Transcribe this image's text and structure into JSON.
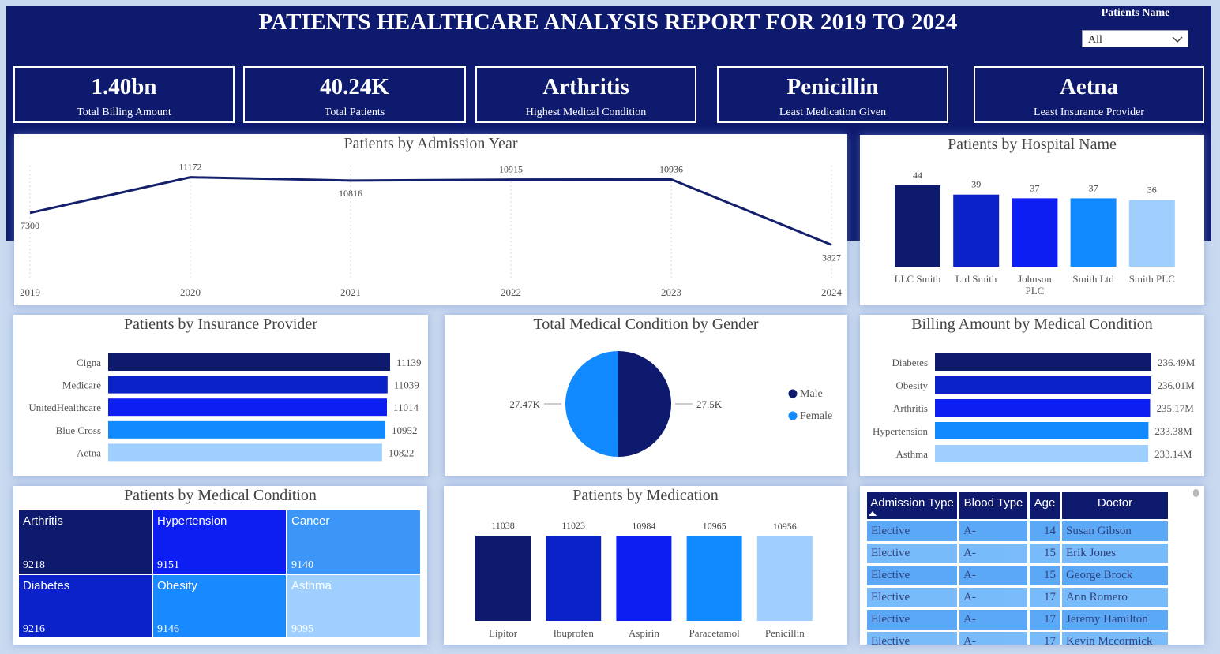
{
  "title": "PATIENTS HEALTHCARE ANALYSIS REPORT FOR 2019 TO 2024",
  "filter": {
    "label": "Patients Name",
    "value": "All"
  },
  "kpis": [
    {
      "value": "1.40bn",
      "label": "Total Billing Amount"
    },
    {
      "value": "40.24K",
      "label": "Total Patients"
    },
    {
      "value": "Arthritis",
      "label": "Highest Medical Condition"
    },
    {
      "value": "Penicillin",
      "label": "Least Medication Given"
    },
    {
      "value": "Aetna",
      "label": "Least Insurance Provider"
    }
  ],
  "colors": {
    "navy": "#0e1a6e",
    "blue": "#0a22c7",
    "bright_blue": "#0c1ef2",
    "mid_blue": "#1189ff",
    "light_blue": "#9ecfff",
    "line": "#14206b"
  },
  "chart_data": [
    {
      "id": "admission",
      "type": "line",
      "title": "Patients by Admission Year",
      "x": [
        "2019",
        "2020",
        "2021",
        "2022",
        "2023",
        "2024"
      ],
      "values": [
        7300,
        11172,
        10816,
        10915,
        10936,
        3827
      ],
      "value_labels": [
        "7300",
        "11172",
        "10816",
        "10915",
        "10936",
        "3827"
      ],
      "ylim": [
        3000,
        12000
      ]
    },
    {
      "id": "hospital",
      "type": "bar",
      "title": "Patients by Hospital Name",
      "categories": [
        "LLC Smith",
        "Ltd Smith",
        "Johnson PLC",
        "Smith Ltd",
        "Smith PLC"
      ],
      "values": [
        44,
        39,
        37,
        37,
        36
      ],
      "ylim": [
        0,
        44
      ]
    },
    {
      "id": "insurance",
      "type": "bar",
      "orientation": "horizontal",
      "title": "Patients by Insurance Provider",
      "categories": [
        "Cigna",
        "Medicare",
        "UnitedHealthcare",
        "Blue Cross",
        "Aetna"
      ],
      "values": [
        11139,
        11039,
        11014,
        10952,
        10822
      ],
      "value_labels": [
        "11139",
        "11039",
        "11014",
        "10952",
        "10822"
      ],
      "xlim": [
        0,
        11139
      ]
    },
    {
      "id": "gender",
      "type": "pie",
      "title": "Total Medical Condition by Gender",
      "categories": [
        "Male",
        "Female"
      ],
      "values": [
        27500,
        27470
      ],
      "value_labels": [
        "27.5K",
        "27.47K"
      ],
      "legend": "right"
    },
    {
      "id": "billing",
      "type": "bar",
      "orientation": "horizontal",
      "title": "Billing Amount by Medical Condition",
      "categories": [
        "Diabetes",
        "Obesity",
        "Arthritis",
        "Hypertension",
        "Asthma"
      ],
      "values": [
        236.49,
        236.01,
        235.17,
        233.38,
        233.14
      ],
      "value_labels": [
        "236.49M",
        "236.01M",
        "235.17M",
        "233.38M",
        "233.14M"
      ],
      "xlim": [
        0,
        236.49
      ]
    },
    {
      "id": "condition",
      "type": "treemap",
      "title": "Patients by Medical Condition",
      "categories": [
        "Arthritis",
        "Hypertension",
        "Cancer",
        "Diabetes",
        "Obesity",
        "Asthma"
      ],
      "values": [
        9218,
        9151,
        9140,
        9216,
        9146,
        9095
      ]
    },
    {
      "id": "medication",
      "type": "bar",
      "title": "Patients by Medication",
      "categories": [
        "Lipitor",
        "Ibuprofen",
        "Aspirin",
        "Paracetamol",
        "Penicillin"
      ],
      "values": [
        11038,
        11023,
        10984,
        10965,
        10956
      ],
      "ylim": [
        0,
        11038
      ]
    }
  ],
  "table": {
    "headers": [
      "Admission Type",
      "Blood Type",
      "Age",
      "Doctor"
    ],
    "rows": [
      [
        "Elective",
        "A-",
        "14",
        "Susan Gibson"
      ],
      [
        "Elective",
        "A-",
        "15",
        "Erik Jones"
      ],
      [
        "Elective",
        "A-",
        "15",
        "George Brock"
      ],
      [
        "Elective",
        "A-",
        "17",
        "Ann Romero"
      ],
      [
        "Elective",
        "A-",
        "17",
        "Jeremy Hamilton"
      ],
      [
        "Elective",
        "A-",
        "17",
        "Kevin Mccormick"
      ]
    ]
  }
}
